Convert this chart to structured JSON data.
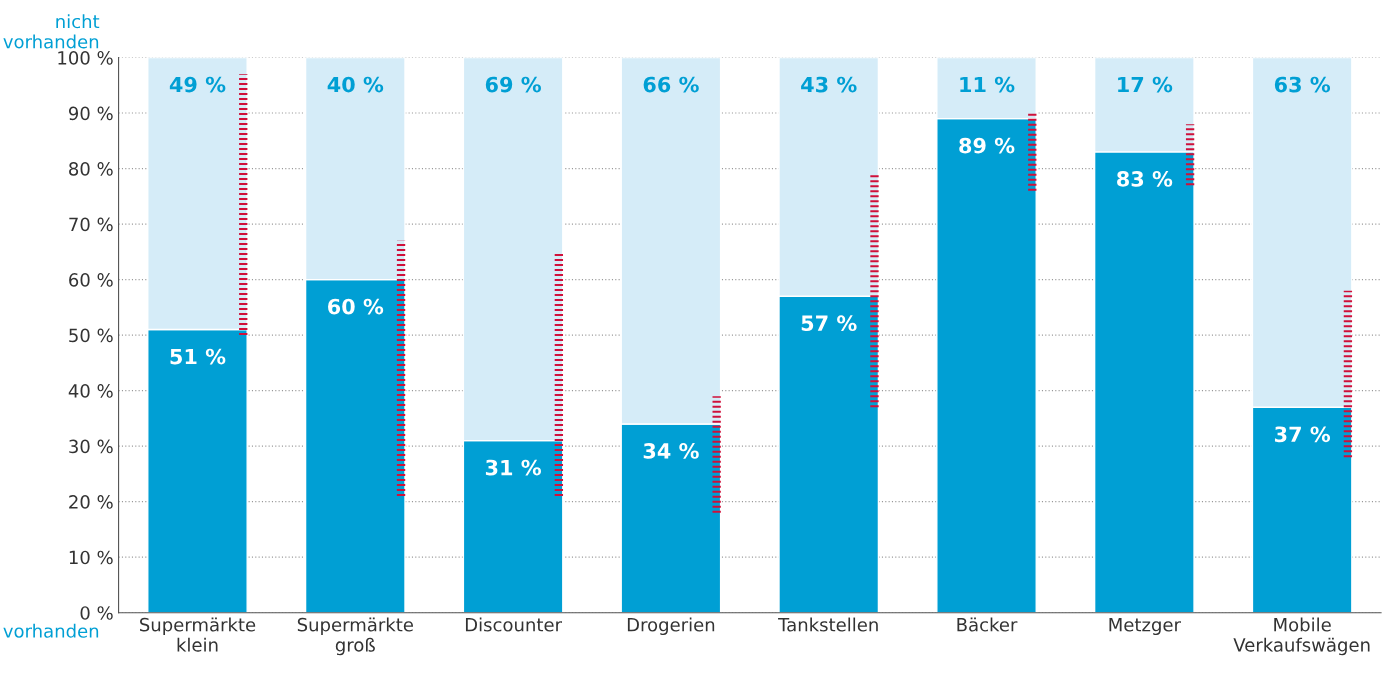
{
  "chart_data": {
    "type": "bar",
    "stacked": true,
    "categories": [
      "Supermärkte\nklein",
      "Supermärkte\ngroß",
      "Discounter",
      "Drogerien",
      "Tankstellen",
      "Bäcker",
      "Metzger",
      "Mobile\nVerkaufswägen"
    ],
    "series": [
      {
        "name": "vorhanden",
        "color": "#009fd4",
        "values": [
          51,
          60,
          31,
          34,
          57,
          89,
          83,
          37
        ],
        "value_labels": [
          "51 %",
          "60 %",
          "31 %",
          "34 %",
          "57 %",
          "89 %",
          "83 %",
          "37 %"
        ],
        "errors": [
          [
            50,
            97
          ],
          [
            21,
            67
          ],
          [
            21,
            65
          ],
          [
            18,
            39
          ],
          [
            37,
            79
          ],
          [
            76,
            90
          ],
          [
            77,
            88
          ],
          [
            28,
            58
          ]
        ]
      },
      {
        "name": "nicht vorhanden",
        "color": "#d5ecf8",
        "values": [
          49,
          40,
          69,
          66,
          43,
          11,
          17,
          63
        ],
        "value_labels": [
          "49 %",
          "40 %",
          "69 %",
          "66 %",
          "43 %",
          "11 %",
          "17 %",
          "63 %"
        ]
      }
    ],
    "ylim": [
      0,
      100
    ],
    "yticks": [
      {
        "value": 0,
        "label": "0 %"
      },
      {
        "value": 10,
        "label": "10 %"
      },
      {
        "value": 20,
        "label": "20 %"
      },
      {
        "value": 30,
        "label": "30 %"
      },
      {
        "value": 40,
        "label": "40 %"
      },
      {
        "value": 50,
        "label": "50 %"
      },
      {
        "value": 60,
        "label": "60 %"
      },
      {
        "value": 70,
        "label": "70 %"
      },
      {
        "value": 80,
        "label": "80 %"
      },
      {
        "value": 90,
        "label": "90 %"
      },
      {
        "value": 100,
        "label": "100 %"
      }
    ],
    "grid": "y",
    "legend": false
  }
}
